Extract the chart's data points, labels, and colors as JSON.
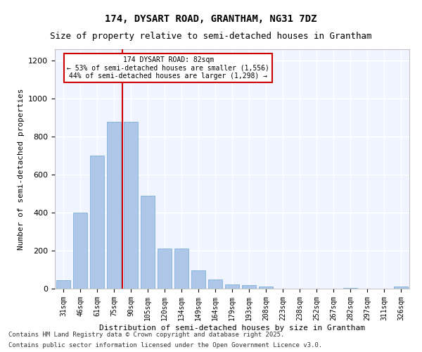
{
  "title1": "174, DYSART ROAD, GRANTHAM, NG31 7DZ",
  "title2": "Size of property relative to semi-detached houses in Grantham",
  "xlabel": "Distribution of semi-detached houses by size in Grantham",
  "ylabel": "Number of semi-detached properties",
  "categories": [
    "31sqm",
    "46sqm",
    "61sqm",
    "75sqm",
    "90sqm",
    "105sqm",
    "120sqm",
    "134sqm",
    "149sqm",
    "164sqm",
    "179sqm",
    "193sqm",
    "208sqm",
    "223sqm",
    "238sqm",
    "252sqm",
    "267sqm",
    "282sqm",
    "297sqm",
    "311sqm",
    "326sqm"
  ],
  "values": [
    45,
    400,
    700,
    880,
    880,
    490,
    210,
    210,
    95,
    48,
    22,
    20,
    10,
    0,
    0,
    0,
    0,
    5,
    0,
    0,
    10
  ],
  "bar_color": "#aec6e8",
  "bar_edge_color": "#6fa8d6",
  "background_color": "#f0f4ff",
  "grid_color": "#ffffff",
  "vline_x": 4,
  "vline_color": "#cc0000",
  "annotation_title": "174 DYSART ROAD: 82sqm",
  "annotation_line2": "← 53% of semi-detached houses are smaller (1,556)",
  "annotation_line3": "44% of semi-detached houses are larger (1,298) →",
  "annotation_box_color": "#ffffff",
  "annotation_box_edge": "#cc0000",
  "footer1": "Contains HM Land Registry data © Crown copyright and database right 2025.",
  "footer2": "Contains public sector information licensed under the Open Government Licence v3.0.",
  "ylim": [
    0,
    1260
  ],
  "yticks": [
    0,
    200,
    400,
    600,
    800,
    1000,
    1200
  ]
}
